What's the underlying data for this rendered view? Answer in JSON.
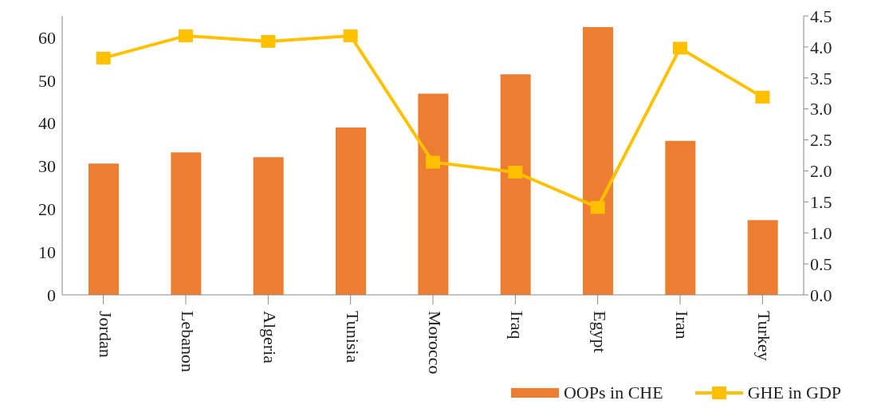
{
  "chart_data": {
    "type": "bar",
    "categories": [
      "Jordan",
      "Lebanon",
      "Algeria",
      "Tunisia",
      "Morocco",
      "Iraq",
      "Egypt",
      "Iran",
      "Turkey"
    ],
    "series": [
      {
        "name": "OOPs in CHE",
        "color": "#ed7d31",
        "values": [
          30.6,
          33.2,
          32.1,
          39.0,
          46.9,
          51.4,
          62.4,
          35.9,
          17.4
        ]
      },
      {
        "name": "GHE in GDP",
        "type": "line",
        "axis": "y2",
        "color": "#ffc000",
        "marker": "square",
        "values": [
          3.82,
          4.18,
          4.09,
          4.18,
          2.14,
          1.98,
          1.41,
          3.98,
          3.19
        ]
      }
    ],
    "ylim": [
      0,
      65
    ],
    "yticks": [
      0,
      10,
      20,
      30,
      40,
      50,
      60
    ],
    "y2lim": [
      0,
      4.5
    ],
    "y2ticks": [
      {
        "value": 0,
        "label": "0.0"
      },
      {
        "value": 0.5,
        "label": "0.5"
      },
      {
        "value": 1,
        "label": "1.0"
      },
      {
        "value": 1.5,
        "label": "1.5"
      },
      {
        "value": 2,
        "label": "2.0"
      },
      {
        "value": 2.5,
        "label": "2.5"
      },
      {
        "value": 3,
        "label": "3.0"
      },
      {
        "value": 3.5,
        "label": "3.5"
      },
      {
        "value": 4,
        "label": "4.0"
      },
      {
        "value": 4.5,
        "label": "4.5"
      }
    ],
    "grid": false,
    "legend": "bottom"
  }
}
